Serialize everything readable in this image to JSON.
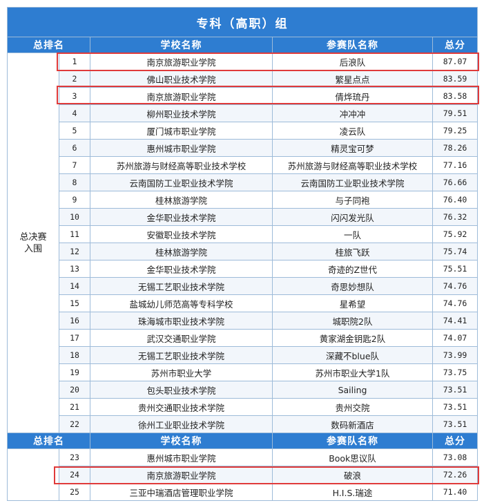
{
  "title": "专科（高职）组",
  "headers": {
    "rank": "总排名",
    "school": "学校名称",
    "team": "参赛队名称",
    "score": "总分"
  },
  "group_label_line1": "总决赛",
  "group_label_line2": "入围",
  "rows_final": [
    {
      "rank": "1",
      "school": "南京旅游职业学院",
      "team": "后浪队",
      "score": "87.07"
    },
    {
      "rank": "2",
      "school": "佛山职业技术学院",
      "team": "繁星点点",
      "score": "83.59"
    },
    {
      "rank": "3",
      "school": "南京旅游职业学院",
      "team": "倩烨琉丹",
      "score": "83.58"
    },
    {
      "rank": "4",
      "school": "柳州职业技术学院",
      "team": "冲冲冲",
      "score": "79.51"
    },
    {
      "rank": "5",
      "school": "厦门城市职业学院",
      "team": "凌云队",
      "score": "79.25"
    },
    {
      "rank": "6",
      "school": "惠州城市职业学院",
      "team": "精灵宝可梦",
      "score": "78.26"
    },
    {
      "rank": "7",
      "school": "苏州旅游与财经高等职业技术学校",
      "team": "苏州旅游与财经高等职业技术学校",
      "score": "77.16"
    },
    {
      "rank": "8",
      "school": "云南国防工业职业技术学院",
      "team": "云南国防工业职业技术学院",
      "score": "76.66"
    },
    {
      "rank": "9",
      "school": "桂林旅游学院",
      "team": "与子同袍",
      "score": "76.40"
    },
    {
      "rank": "10",
      "school": "金华职业技术学院",
      "team": "闪闪发光队",
      "score": "76.32"
    },
    {
      "rank": "11",
      "school": "安徽职业技术学院",
      "team": "一队",
      "score": "75.92"
    },
    {
      "rank": "12",
      "school": "桂林旅游学院",
      "team": "桂旅飞跃",
      "score": "75.74"
    },
    {
      "rank": "13",
      "school": "金华职业技术学院",
      "team": "奇迹的Z世代",
      "score": "75.51"
    },
    {
      "rank": "14",
      "school": "无锡工艺职业技术学院",
      "team": "奇思妙想队",
      "score": "74.76"
    },
    {
      "rank": "15",
      "school": "盐城幼儿师范高等专科学校",
      "team": "星希望",
      "score": "74.76"
    },
    {
      "rank": "16",
      "school": "珠海城市职业技术学院",
      "team": "城职院2队",
      "score": "74.41"
    },
    {
      "rank": "17",
      "school": "武汉交通职业学院",
      "team": "黄家湖金钥匙2队",
      "score": "74.07"
    },
    {
      "rank": "18",
      "school": "无锡工艺职业技术学院",
      "team": "深藏不blue队",
      "score": "73.99"
    },
    {
      "rank": "19",
      "school": "苏州市职业大学",
      "team": "苏州市职业大学1队",
      "score": "73.75"
    },
    {
      "rank": "20",
      "school": "包头职业技术学院",
      "team": "Sailing",
      "score": "73.51"
    },
    {
      "rank": "21",
      "school": "贵州交通职业技术学院",
      "team": "贵州交院",
      "score": "73.51"
    },
    {
      "rank": "22",
      "school": "徐州工业职业技术学院",
      "team": "数码新酒店",
      "score": "73.51"
    }
  ],
  "rows_other": [
    {
      "rank": "23",
      "school": "惠州城市职业学院",
      "team": "Book思议队",
      "score": "73.08"
    },
    {
      "rank": "24",
      "school": "南京旅游职业学院",
      "team": "破浪",
      "score": "72.26"
    },
    {
      "rank": "25",
      "school": "三亚中瑞酒店管理职业学院",
      "team": "H.I.S.瑞途",
      "score": "71.40"
    }
  ]
}
